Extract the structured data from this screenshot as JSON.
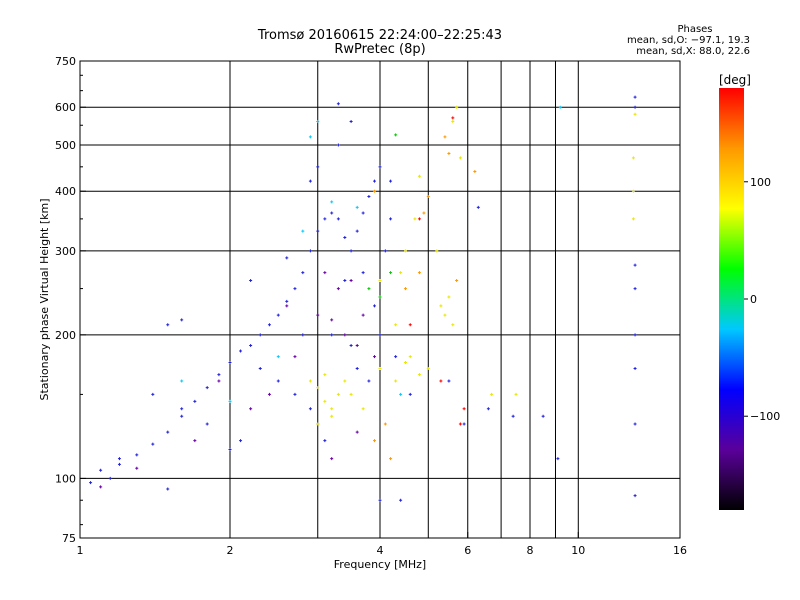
{
  "header": {
    "title_line1": "Tromsø 20160615 22:24:00–22:25:43",
    "title_line2": "RwPretec (8p)",
    "phases_title": "Phases",
    "phases_o": "mean, sd,O: −97.1, 19.3",
    "phases_x": "mean, sd,X:  88.0, 22.6"
  },
  "chart_data": {
    "type": "scatter",
    "title": "Tromsø 20160615 22:24:00–22:25:43",
    "subtitle": "RwPretec (8p)",
    "xlabel": "Frequency [MHz]",
    "ylabel": "Stationary phase Virtual Height [km]",
    "x_scale": "log",
    "y_scale": "log",
    "xlim": [
      1,
      16
    ],
    "ylim": [
      75,
      750
    ],
    "x_ticks": [
      1,
      2,
      4,
      6,
      8,
      10,
      16
    ],
    "x_tick_labels": [
      "1",
      "2",
      "4",
      "6",
      "8",
      "10",
      "16"
    ],
    "x_grid": [
      2,
      4,
      6,
      8,
      10
    ],
    "x_minor_grid": [
      3,
      5,
      7,
      9
    ],
    "y_ticks": [
      75,
      100,
      200,
      300,
      400,
      500,
      600,
      750
    ],
    "y_tick_labels": [
      "75",
      "100",
      "200",
      "300",
      "400",
      "500",
      "600",
      "750"
    ],
    "y_grid": [
      100,
      200,
      300,
      400,
      500,
      600
    ],
    "grid": true,
    "colorbar": {
      "label": "[deg]",
      "range": [
        -180,
        180
      ],
      "ticks": [
        100,
        0,
        -100
      ],
      "tick_labels": [
        "100",
        "0",
        "−100"
      ],
      "colors": [
        "#000000",
        "#5a009a",
        "#0000ff",
        "#00c8ff",
        "#00ff00",
        "#ffff00",
        "#ff9900",
        "#ff0000"
      ]
    },
    "series": [
      {
        "color": "#2222dd",
        "values": [
          [
            1.05,
            98
          ],
          [
            1.1,
            104
          ],
          [
            1.15,
            100
          ],
          [
            1.2,
            107
          ],
          [
            1.3,
            112
          ],
          [
            1.4,
            118
          ],
          [
            1.5,
            125
          ],
          [
            1.6,
            135
          ],
          [
            1.7,
            145
          ],
          [
            1.8,
            155
          ],
          [
            1.9,
            165
          ],
          [
            2.0,
            175
          ],
          [
            2.1,
            185
          ],
          [
            2.2,
            190
          ],
          [
            2.3,
            200
          ],
          [
            2.4,
            210
          ],
          [
            2.5,
            220
          ],
          [
            2.6,
            235
          ],
          [
            2.7,
            250
          ],
          [
            2.8,
            270
          ],
          [
            2.9,
            300
          ],
          [
            3.0,
            330
          ],
          [
            3.1,
            350
          ],
          [
            3.2,
            360
          ],
          [
            3.3,
            350
          ],
          [
            3.4,
            320
          ],
          [
            3.5,
            300
          ],
          [
            3.6,
            330
          ],
          [
            3.7,
            360
          ],
          [
            3.8,
            390
          ],
          [
            3.9,
            420
          ],
          [
            4.0,
            450
          ],
          [
            2.3,
            170
          ],
          [
            2.5,
            160
          ],
          [
            2.7,
            150
          ],
          [
            2.9,
            140
          ],
          [
            3.0,
            130
          ],
          [
            3.1,
            120
          ],
          [
            2.1,
            120
          ],
          [
            2.0,
            115
          ],
          [
            1.8,
            130
          ],
          [
            1.6,
            140
          ],
          [
            1.4,
            150
          ],
          [
            1.5,
            210
          ],
          [
            1.6,
            215
          ],
          [
            2.8,
            200
          ],
          [
            3.2,
            200
          ],
          [
            3.5,
            190
          ],
          [
            3.6,
            170
          ],
          [
            3.8,
            160
          ],
          [
            3.9,
            230
          ],
          [
            4.1,
            300
          ],
          [
            4.2,
            350
          ],
          [
            3.0,
            450
          ],
          [
            3.3,
            500
          ],
          [
            3.5,
            560
          ],
          [
            3.3,
            610
          ],
          [
            2.9,
            420
          ],
          [
            2.6,
            290
          ],
          [
            2.2,
            260
          ],
          [
            3.4,
            260
          ],
          [
            3.7,
            270
          ],
          [
            4.0,
            200
          ],
          [
            4.3,
            180
          ],
          [
            4.6,
            150
          ],
          [
            5.5,
            160
          ],
          [
            5.9,
            130
          ],
          [
            6.6,
            140
          ],
          [
            7.4,
            135
          ],
          [
            8.5,
            135
          ],
          [
            13.0,
            630
          ],
          [
            13.0,
            600
          ],
          [
            13.0,
            280
          ],
          [
            13.0,
            250
          ],
          [
            13.0,
            200
          ],
          [
            13.0,
            170
          ],
          [
            13.0,
            130
          ],
          [
            13.0,
            92
          ],
          [
            4.0,
            90
          ],
          [
            4.4,
            90
          ],
          [
            4.2,
            420
          ],
          [
            6.3,
            370
          ],
          [
            1.5,
            95
          ],
          [
            1.2,
            110
          ],
          [
            9.1,
            110
          ]
        ]
      },
      {
        "color": "#e8e800",
        "values": [
          [
            3.0,
            155
          ],
          [
            3.1,
            145
          ],
          [
            3.2,
            140
          ],
          [
            3.3,
            150
          ],
          [
            3.4,
            160
          ],
          [
            3.5,
            150
          ],
          [
            3.0,
            130
          ],
          [
            3.2,
            135
          ],
          [
            2.9,
            160
          ],
          [
            3.1,
            165
          ],
          [
            3.7,
            140
          ],
          [
            4.5,
            175
          ],
          [
            4.6,
            180
          ],
          [
            4.8,
            165
          ],
          [
            5.0,
            170
          ],
          [
            4.3,
            160
          ],
          [
            4.0,
            170
          ],
          [
            5.3,
            230
          ],
          [
            5.4,
            220
          ],
          [
            5.6,
            210
          ],
          [
            5.5,
            240
          ],
          [
            4.4,
            270
          ],
          [
            4.5,
            300
          ],
          [
            4.7,
            350
          ],
          [
            4.8,
            430
          ],
          [
            5.6,
            560
          ],
          [
            5.7,
            600
          ],
          [
            5.8,
            470
          ],
          [
            12.9,
            470
          ],
          [
            12.9,
            400
          ],
          [
            12.9,
            350
          ],
          [
            13.0,
            580
          ],
          [
            4.0,
            260
          ],
          [
            4.3,
            210
          ],
          [
            5.2,
            300
          ],
          [
            7.5,
            150
          ],
          [
            6.7,
            150
          ]
        ]
      },
      {
        "color": "#6a00a8",
        "values": [
          [
            3.0,
            220
          ],
          [
            3.2,
            215
          ],
          [
            3.4,
            200
          ],
          [
            3.6,
            190
          ],
          [
            3.3,
            250
          ],
          [
            3.5,
            260
          ],
          [
            2.6,
            230
          ],
          [
            2.7,
            180
          ],
          [
            2.2,
            140
          ],
          [
            1.9,
            160
          ],
          [
            1.7,
            120
          ],
          [
            1.3,
            105
          ],
          [
            1.1,
            96
          ],
          [
            2.4,
            150
          ],
          [
            3.1,
            270
          ],
          [
            3.7,
            220
          ],
          [
            3.9,
            180
          ],
          [
            3.6,
            125
          ],
          [
            3.2,
            110
          ]
        ]
      },
      {
        "color": "#ff9900",
        "values": [
          [
            4.9,
            360
          ],
          [
            5.0,
            390
          ],
          [
            4.8,
            270
          ],
          [
            5.5,
            480
          ],
          [
            5.4,
            520
          ],
          [
            5.7,
            260
          ],
          [
            4.5,
            250
          ],
          [
            3.9,
            400
          ],
          [
            4.1,
            130
          ],
          [
            6.2,
            440
          ],
          [
            4.2,
            110
          ],
          [
            3.9,
            120
          ]
        ]
      },
      {
        "color": "#00ccff",
        "values": [
          [
            2.9,
            520
          ],
          [
            3.0,
            560
          ],
          [
            3.2,
            380
          ],
          [
            3.6,
            370
          ],
          [
            4.4,
            150
          ],
          [
            2.5,
            180
          ],
          [
            1.6,
            160
          ],
          [
            2.0,
            145
          ],
          [
            9.2,
            600
          ],
          [
            2.8,
            330
          ]
        ]
      },
      {
        "color": "#00cc00",
        "values": [
          [
            4.2,
            270
          ],
          [
            4.0,
            240
          ],
          [
            4.3,
            525
          ],
          [
            3.8,
            250
          ]
        ]
      },
      {
        "color": "#ff0000",
        "values": [
          [
            5.8,
            130
          ],
          [
            5.9,
            140
          ],
          [
            5.6,
            570
          ],
          [
            4.8,
            350
          ],
          [
            4.6,
            210
          ],
          [
            5.3,
            160
          ]
        ]
      }
    ]
  }
}
